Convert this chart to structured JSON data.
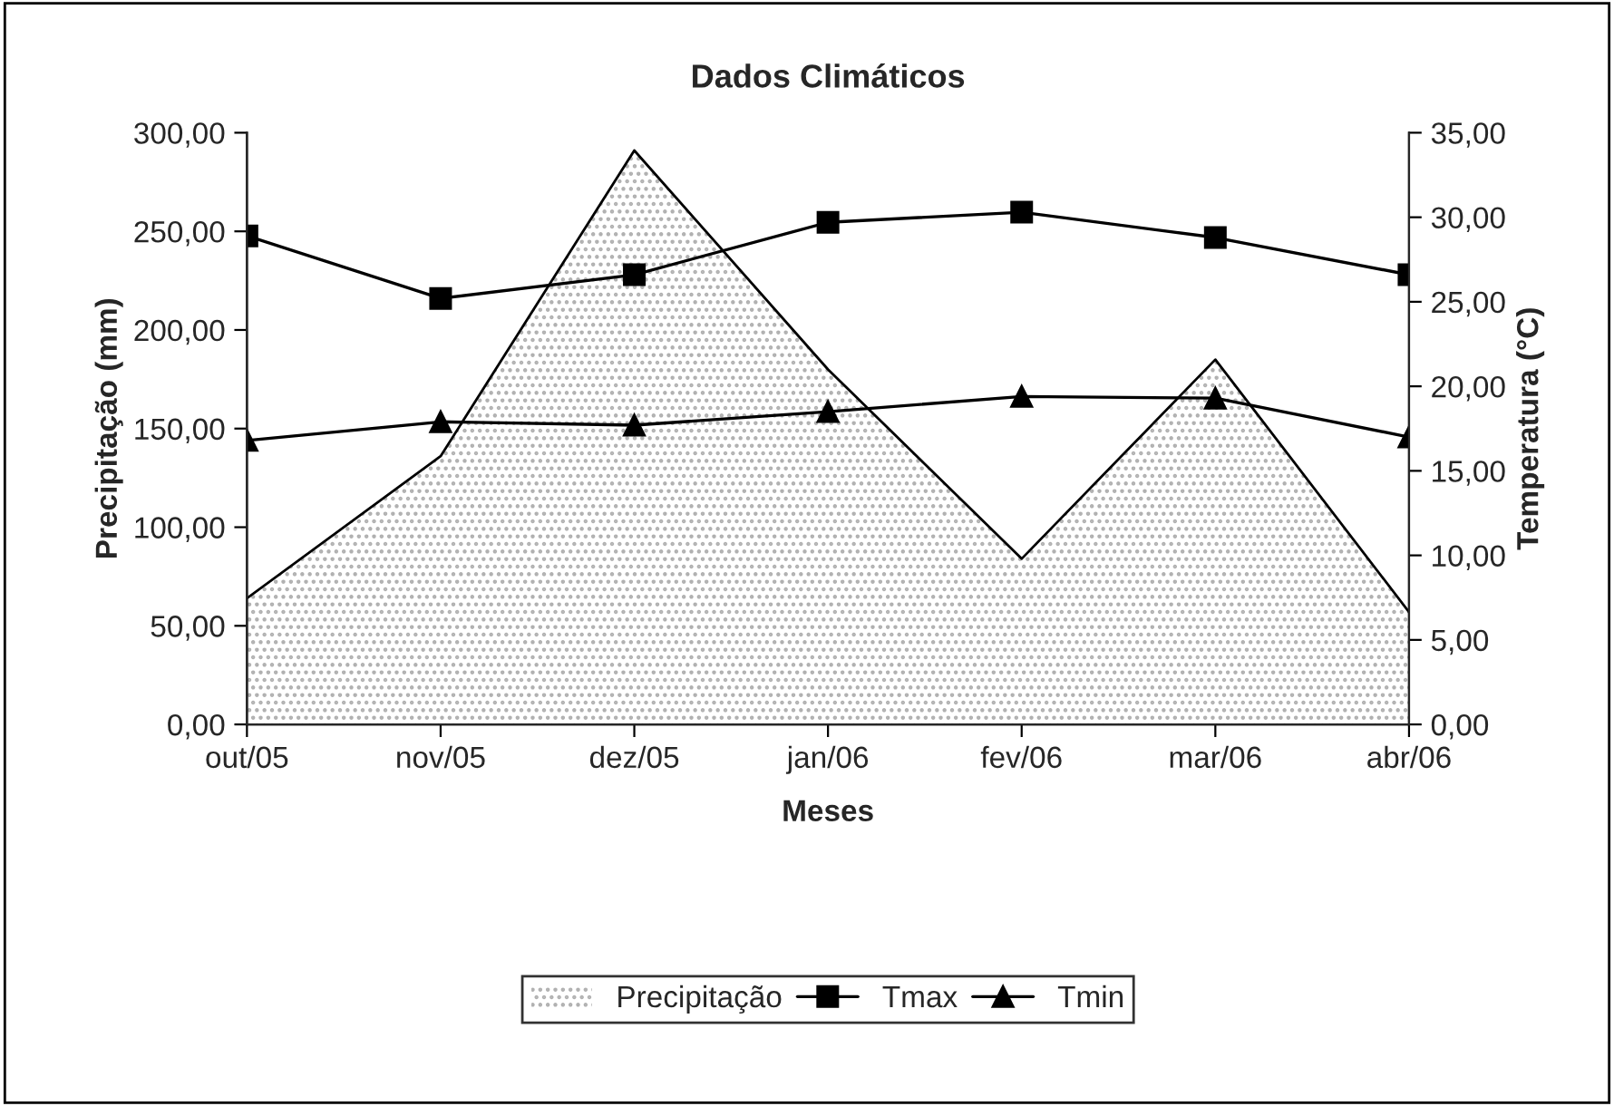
{
  "chart_data": {
    "type": "area",
    "title": "Dados Climáticos",
    "xlabel": "Meses",
    "ylabel": "Precipitação (mm)",
    "y2label": "Temperatura (°C)",
    "categories": [
      "out/05",
      "nov/05",
      "dez/05",
      "jan/06",
      "fev/06",
      "mar/06",
      "abr/06"
    ],
    "series": [
      {
        "name": "Precipitação",
        "color": "#b0b0b0",
        "values": [
          64,
          136,
          291,
          180,
          84,
          185,
          57
        ]
      },
      {
        "name": "Tmax",
        "type": "line",
        "axis": "y2",
        "marker": "square",
        "color": "#000000",
        "values": [
          28.9,
          25.2,
          26.6,
          29.7,
          30.3,
          28.8,
          26.6
        ]
      },
      {
        "name": "Tmin",
        "type": "line",
        "axis": "y2",
        "marker": "triangle",
        "color": "#000000",
        "values": [
          16.8,
          17.9,
          17.7,
          18.5,
          19.4,
          19.3,
          17.0
        ]
      }
    ],
    "ylim": [
      0,
      300
    ],
    "yticks": [
      {
        "value": 0,
        "label": "0,00"
      },
      {
        "value": 50,
        "label": "50,00"
      },
      {
        "value": 100,
        "label": "100,00"
      },
      {
        "value": 150,
        "label": "150,00"
      },
      {
        "value": 200,
        "label": "200,00"
      },
      {
        "value": 250,
        "label": "250,00"
      },
      {
        "value": 300,
        "label": "300,00"
      }
    ],
    "y2lim": [
      0,
      35
    ],
    "y2ticks": [
      {
        "value": 0,
        "label": "0,00"
      },
      {
        "value": 5,
        "label": "5,00"
      },
      {
        "value": 10,
        "label": "10,00"
      },
      {
        "value": 15,
        "label": "15,00"
      },
      {
        "value": 20,
        "label": "20,00"
      },
      {
        "value": 25,
        "label": "25,00"
      },
      {
        "value": 30,
        "label": "30,00"
      },
      {
        "value": 35,
        "label": "35,00"
      }
    ],
    "legend": "bottom",
    "grid": false,
    "line_style": "solid"
  }
}
